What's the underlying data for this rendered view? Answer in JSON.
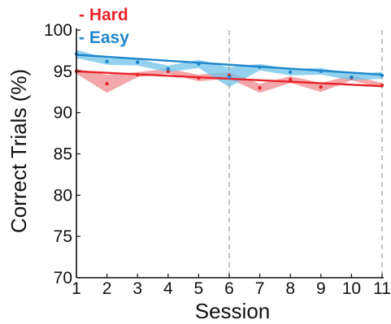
{
  "chart_data": {
    "type": "line",
    "xlabel": "Session",
    "ylabel": "Correct Trials (%)",
    "xlim": [
      1,
      11
    ],
    "ylim": [
      70,
      100
    ],
    "x_ticks": [
      "1",
      "2",
      "3",
      "4",
      "5",
      "6",
      "7",
      "8",
      "9",
      "10",
      "11"
    ],
    "y_ticks": [
      "70",
      "75",
      "80",
      "85",
      "90",
      "95",
      "100"
    ],
    "vertical_dashed_lines_at": [
      1,
      6,
      11
    ],
    "grid": false,
    "legend_position": "top-left",
    "series": [
      {
        "name": "Hard",
        "legend_label": "- Hard",
        "color": "#e8242b",
        "band_color": "#f08a8e",
        "x": [
          1,
          2,
          3,
          4,
          5,
          6,
          7,
          8,
          9,
          10,
          11
        ],
        "mean": [
          95.0,
          93.5,
          94.6,
          95.0,
          94.2,
          94.5,
          93.0,
          94.0,
          93.1,
          94.2,
          93.3
        ],
        "upper": [
          95.3,
          94.6,
          94.9,
          95.3,
          94.6,
          94.9,
          93.5,
          94.4,
          93.6,
          94.5,
          93.6
        ],
        "lower": [
          94.7,
          92.4,
          94.3,
          94.7,
          93.8,
          94.1,
          92.4,
          93.6,
          92.5,
          93.9,
          93.0
        ],
        "fit": [
          95.0,
          93.2
        ]
      },
      {
        "name": "Easy",
        "legend_label": "- Easy",
        "color": "#1f86cc",
        "band_color": "#6fc3ea",
        "x": [
          1,
          2,
          3,
          4,
          5,
          6,
          7,
          8,
          9,
          10,
          11
        ],
        "mean": [
          97.1,
          96.2,
          96.1,
          95.3,
          95.9,
          94.3,
          95.5,
          94.9,
          95.0,
          94.3,
          94.5
        ],
        "upper": [
          97.6,
          96.6,
          96.5,
          95.7,
          96.4,
          95.5,
          95.9,
          95.3,
          95.4,
          94.7,
          94.9
        ],
        "lower": [
          96.6,
          95.8,
          95.7,
          94.9,
          95.4,
          93.1,
          95.1,
          94.5,
          94.6,
          93.9,
          94.1
        ],
        "fit": [
          97.0,
          94.6
        ]
      }
    ]
  }
}
